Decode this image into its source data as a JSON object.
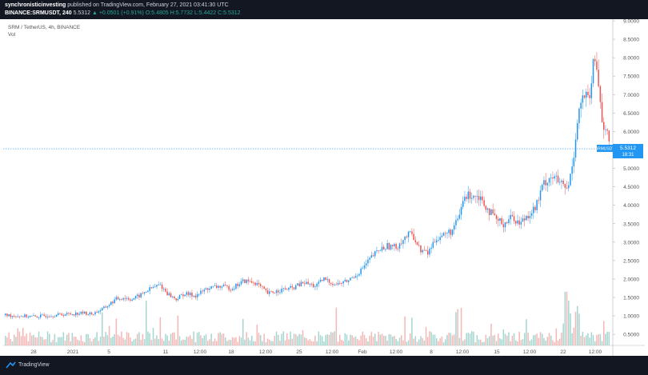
{
  "header": {
    "publisher": "synchronisticinvesting",
    "published_text": "published on TradingView.com, February 27, 2021 03:41:30 UTC",
    "symbol_label": "BINANCE:SRMUSDT, 240",
    "last_price": "5.5312",
    "change_text": "+0.0501 (+0.91%)",
    "ohlc_text": "O:5.4805 H:5.7732 L:5.4422 C:5.5312"
  },
  "legend": {
    "title": "SRM / TetherUS, 4h, BINANCE",
    "volume_label": "Vol"
  },
  "footer": {
    "brand": "TradingView"
  },
  "colors": {
    "up": "#26a69a",
    "down": "#ef5350",
    "candle_up": "#2196f3",
    "candle_down": "#ef5350",
    "price_line": "#2196f3",
    "tag_bg": "#2196f3",
    "vol_up": "#a5d6cf",
    "vol_down": "#f5b7b5"
  },
  "chart_data": {
    "type": "candlestick",
    "title": "SRM / TetherUS, 4h, BINANCE",
    "y_ticks": [
      "9.0000",
      "8.5000",
      "8.0000",
      "7.5000",
      "7.0000",
      "6.5000",
      "6.0000",
      "5.5000",
      "5.0000",
      "4.5000",
      "4.0000",
      "3.5000",
      "3.0000",
      "2.5000",
      "2.0000",
      "1.5000",
      "1.0000",
      "0.5000"
    ],
    "y_range": [
      0.2,
      9.0
    ],
    "x_ticks": [
      "28",
      "2021",
      "5",
      "11",
      "12:00",
      "18",
      "12:00",
      "25",
      "12:00",
      "Feb",
      "12:00",
      "8",
      "12:00",
      "15",
      "12:00",
      "22",
      "12:00"
    ],
    "last_price_tag": {
      "symbol": "SRMUSDT",
      "price": "5.5312",
      "countdown": "18:31"
    },
    "path": [
      [
        0,
        1.02
      ],
      [
        20,
        1.0
      ],
      [
        40,
        0.98
      ],
      [
        60,
        1.02
      ],
      [
        80,
        1.05
      ],
      [
        100,
        1.08
      ],
      [
        110,
        1.05
      ],
      [
        125,
        1.2
      ],
      [
        140,
        1.45
      ],
      [
        150,
        1.5
      ],
      [
        160,
        1.45
      ],
      [
        170,
        1.55
      ],
      [
        180,
        1.7
      ],
      [
        195,
        1.85
      ],
      [
        205,
        1.6
      ],
      [
        215,
        1.45
      ],
      [
        225,
        1.6
      ],
      [
        240,
        1.55
      ],
      [
        255,
        1.75
      ],
      [
        270,
        1.8
      ],
      [
        285,
        1.75
      ],
      [
        300,
        1.95
      ],
      [
        315,
        1.9
      ],
      [
        330,
        1.6
      ],
      [
        345,
        1.7
      ],
      [
        360,
        1.75
      ],
      [
        375,
        1.9
      ],
      [
        390,
        1.8
      ],
      [
        400,
        2.0
      ],
      [
        415,
        1.85
      ],
      [
        430,
        1.95
      ],
      [
        445,
        2.2
      ],
      [
        460,
        2.6
      ],
      [
        470,
        2.8
      ],
      [
        480,
        2.9
      ],
      [
        490,
        2.85
      ],
      [
        500,
        3.1
      ],
      [
        510,
        3.25
      ],
      [
        520,
        2.8
      ],
      [
        530,
        2.7
      ],
      [
        540,
        3.1
      ],
      [
        550,
        3.2
      ],
      [
        560,
        3.3
      ],
      [
        568,
        3.6
      ],
      [
        575,
        4.2
      ],
      [
        585,
        4.3
      ],
      [
        595,
        4.25
      ],
      [
        605,
        3.9
      ],
      [
        615,
        3.6
      ],
      [
        625,
        3.5
      ],
      [
        635,
        3.7
      ],
      [
        645,
        3.5
      ],
      [
        655,
        3.75
      ],
      [
        665,
        3.95
      ],
      [
        675,
        4.6
      ],
      [
        685,
        4.8
      ],
      [
        695,
        4.6
      ],
      [
        705,
        4.4
      ],
      [
        712,
        5.3
      ],
      [
        718,
        6.5
      ],
      [
        725,
        7.0
      ],
      [
        732,
        6.8
      ],
      [
        738,
        8.0
      ],
      [
        742,
        7.6
      ],
      [
        748,
        6.3
      ],
      [
        754,
        5.9
      ],
      [
        758,
        5.53
      ]
    ],
    "volume_note": "volume histogram shown along bottom pane"
  }
}
